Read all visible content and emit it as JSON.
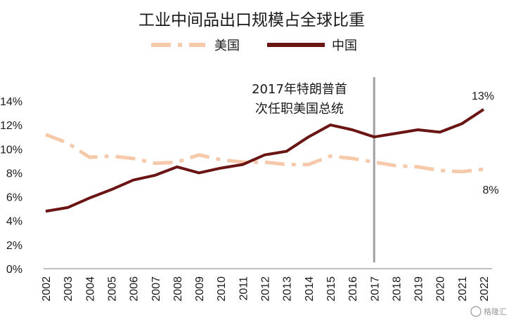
{
  "chart_data": {
    "type": "line",
    "title": "工业中间品出口规模占全球比重",
    "x": [
      "2002",
      "2003",
      "2004",
      "2005",
      "2006",
      "2007",
      "2008",
      "2009",
      "2010",
      "2011",
      "2012",
      "2013",
      "2014",
      "2015",
      "2016",
      "2017",
      "2018",
      "2019",
      "2020",
      "2021",
      "2022"
    ],
    "series": [
      {
        "name": "美国",
        "color": "#f5c9a9",
        "style": "dash-dot",
        "values": [
          11.2,
          10.5,
          9.3,
          9.4,
          9.2,
          8.8,
          8.9,
          9.5,
          9.1,
          8.9,
          8.9,
          8.7,
          8.7,
          9.4,
          9.2,
          8.9,
          8.6,
          8.5,
          8.2,
          8.1,
          8.3
        ]
      },
      {
        "name": "中国",
        "color": "#6b1414",
        "style": "solid",
        "values": [
          4.8,
          5.1,
          5.9,
          6.6,
          7.4,
          7.8,
          8.5,
          8.0,
          8.4,
          8.7,
          9.5,
          9.8,
          11.0,
          12.0,
          11.6,
          11.0,
          11.3,
          11.6,
          11.4,
          12.1,
          13.3
        ]
      }
    ],
    "ylim": [
      0,
      14
    ],
    "yticks": [
      "0%",
      "2%",
      "4%",
      "6%",
      "8%",
      "10%",
      "12%",
      "14%"
    ],
    "ytick_values": [
      0,
      2,
      4,
      6,
      8,
      10,
      12,
      14
    ],
    "legend": "top-center",
    "annotation": {
      "year": "2017",
      "line1": "2017年特朗普首",
      "line2": "次任职美国总统",
      "line_color": "#a0a0a0"
    },
    "data_labels": {
      "china_end": "13%",
      "us_end": "8%"
    },
    "watermark": "格隆汇"
  }
}
